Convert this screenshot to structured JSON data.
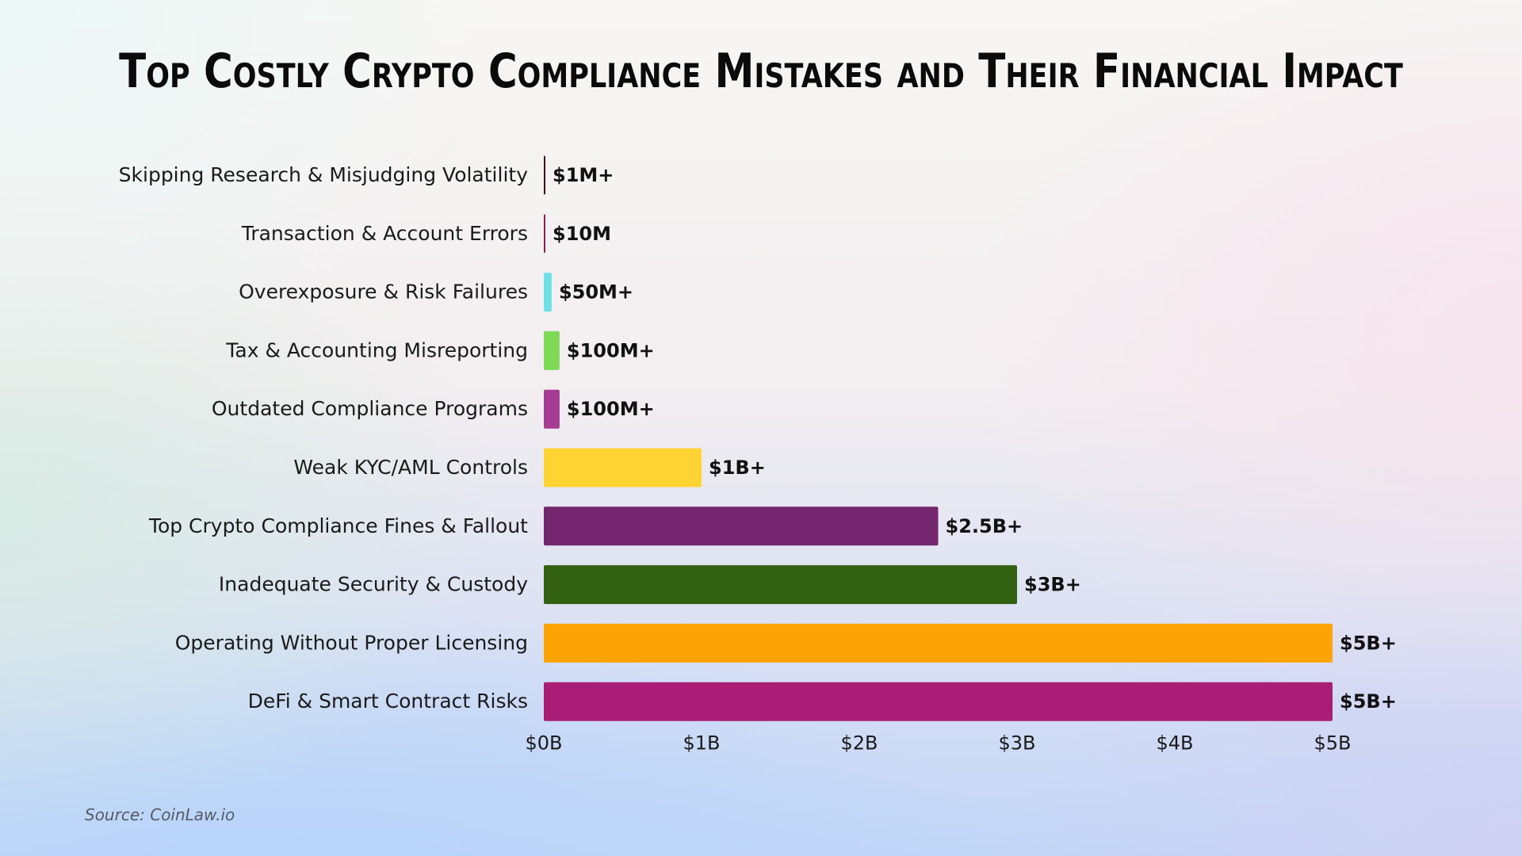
{
  "title": "Top Costly Crypto Compliance Mistakes and Their Financial Impact",
  "source": "Source: CoinLaw.io",
  "chart_data": {
    "type": "bar",
    "orientation": "horizontal",
    "title": "Top Costly Crypto Compliance Mistakes and Their Financial Impact",
    "xlabel": "",
    "ylabel": "",
    "xlim": [
      0,
      5
    ],
    "unit": "billions USD",
    "grid": false,
    "legend": "none",
    "categories": [
      "Skipping Research & Misjudging Volatility",
      "Transaction & Account Errors",
      "Overexposure & Risk Failures",
      "Tax & Accounting Misreporting",
      "Outdated Compliance Programs",
      "Weak KYC/AML Controls",
      "Top Crypto Compliance Fines & Fallout",
      "Inadequate Security & Custody",
      "Operating Without Proper Licensing",
      "DeFi & Smart Contract Risks"
    ],
    "values": [
      0.001,
      0.01,
      0.05,
      0.1,
      0.1,
      1,
      2.5,
      3,
      5,
      5
    ],
    "value_labels": [
      "$1M+",
      "$10M",
      "$50M+",
      "$100M+",
      "$100M+",
      "$1B+",
      "$2.5B+",
      "$3B+",
      "$5B+",
      "$5B+"
    ],
    "colors": [
      "#3a0a1a",
      "#8e1f4e",
      "#6fe0e6",
      "#7ed957",
      "#a53b93",
      "#ffd332",
      "#73266e",
      "#336112",
      "#fca305",
      "#a91d76"
    ],
    "xticks": [
      0,
      1,
      2,
      3,
      4,
      5
    ],
    "xtick_labels": [
      "$0B",
      "$1B",
      "$2B",
      "$3B",
      "$4B",
      "$5B"
    ]
  }
}
